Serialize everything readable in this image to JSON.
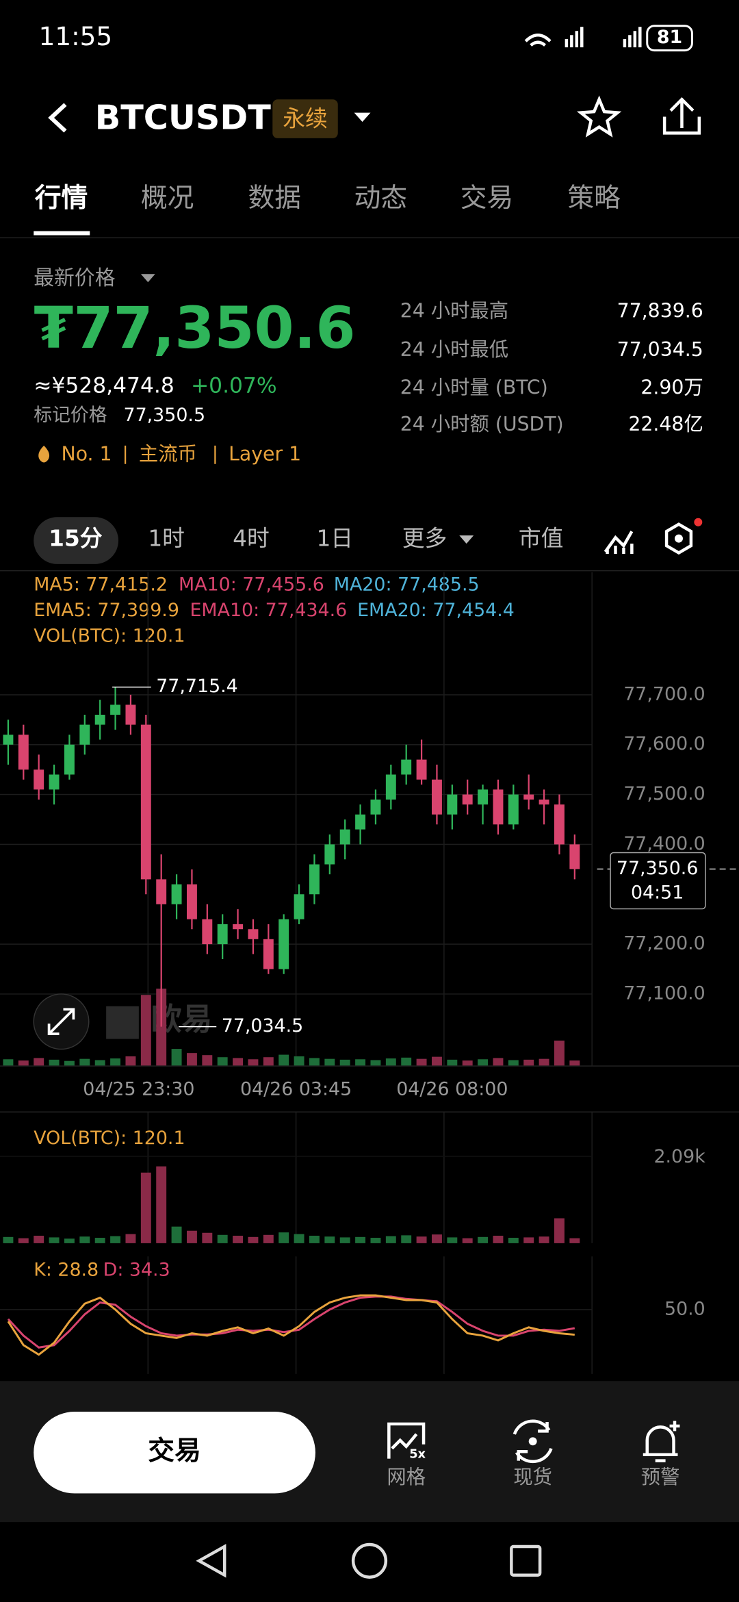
{
  "status": {
    "time": "11:55",
    "battery": "81"
  },
  "header": {
    "symbol": "BTCUSDT",
    "tag": "永续"
  },
  "tabs": [
    "行情",
    "概况",
    "数据",
    "动态",
    "交易",
    "策略"
  ],
  "price": {
    "label": "最新价格",
    "last": "₮77,350.6",
    "cny": "≈¥528,474.8",
    "change": "+0.07%",
    "mark_label": "标记价格",
    "mark": "77,350.5",
    "tags": [
      "No. 1",
      "主流币",
      "Layer 1"
    ]
  },
  "stats": [
    {
      "label": "24 小时最高",
      "value": "77,839.6"
    },
    {
      "label": "24 小时最低",
      "value": "77,034.5"
    },
    {
      "label": "24 小时量 (BTC)",
      "value": "2.90万"
    },
    {
      "label": "24 小时额 (USDT)",
      "value": "22.48亿"
    }
  ],
  "intervals": [
    "15分",
    "1时",
    "4时",
    "1日",
    "更多",
    "市值"
  ],
  "indicators": {
    "ma": [
      "MA5: 77,415.2",
      "MA10: 77,455.6",
      "MA20: 77,485.5"
    ],
    "ema": [
      "EMA5: 77,399.9",
      "EMA10: 77,434.6",
      "EMA20: 77,454.4"
    ],
    "vol": "VOL(BTC): 120.1"
  },
  "chart": {
    "yticks": [
      {
        "value": 77700,
        "label": "77,700.0"
      },
      {
        "value": 77600,
        "label": "77,600.0"
      },
      {
        "value": 77500,
        "label": "77,500.0"
      },
      {
        "value": 77400,
        "label": "77,400.0"
      },
      {
        "value": 77200,
        "label": "77,200.0"
      },
      {
        "value": 77100,
        "label": "77,100.0"
      }
    ],
    "candles": [
      [
        77600,
        77650,
        77560,
        77620
      ],
      [
        77620,
        77640,
        77530,
        77550
      ],
      [
        77550,
        77580,
        77490,
        77510
      ],
      [
        77510,
        77560,
        77480,
        77540
      ],
      [
        77540,
        77620,
        77530,
        77600
      ],
      [
        77600,
        77660,
        77580,
        77640
      ],
      [
        77640,
        77690,
        77610,
        77660
      ],
      [
        77660,
        77715.4,
        77630,
        77680
      ],
      [
        77680,
        77700,
        77620,
        77640
      ],
      [
        77640,
        77660,
        77300,
        77330
      ],
      [
        77330,
        77380,
        77034.5,
        77280
      ],
      [
        77280,
        77340,
        77250,
        77320
      ],
      [
        77320,
        77350,
        77230,
        77250
      ],
      [
        77250,
        77280,
        77180,
        77200
      ],
      [
        77200,
        77260,
        77170,
        77240
      ],
      [
        77240,
        77270,
        77210,
        77230
      ],
      [
        77230,
        77250,
        77180,
        77210
      ],
      [
        77210,
        77240,
        77140,
        77150
      ],
      [
        77150,
        77260,
        77140,
        77250
      ],
      [
        77250,
        77320,
        77240,
        77300
      ],
      [
        77300,
        77380,
        77280,
        77360
      ],
      [
        77360,
        77420,
        77340,
        77400
      ],
      [
        77400,
        77450,
        77370,
        77430
      ],
      [
        77430,
        77480,
        77400,
        77460
      ],
      [
        77460,
        77510,
        77440,
        77490
      ],
      [
        77490,
        77560,
        77470,
        77540
      ],
      [
        77540,
        77600,
        77520,
        77570
      ],
      [
        77570,
        77610,
        77520,
        77530
      ],
      [
        77530,
        77560,
        77440,
        77460
      ],
      [
        77460,
        77520,
        77430,
        77500
      ],
      [
        77500,
        77530,
        77460,
        77480
      ],
      [
        77480,
        77520,
        77440,
        77510
      ],
      [
        77510,
        77530,
        77420,
        77440
      ],
      [
        77440,
        77520,
        77430,
        77500
      ],
      [
        77500,
        77540,
        77470,
        77490
      ],
      [
        77490,
        77510,
        77440,
        77480
      ],
      [
        77480,
        77500,
        77380,
        77400
      ],
      [
        77400,
        77420,
        77330,
        77350.6
      ]
    ],
    "volumes": [
      150,
      120,
      180,
      140,
      110,
      160,
      130,
      170,
      220,
      1700,
      1850,
      400,
      300,
      250,
      200,
      180,
      150,
      200,
      260,
      220,
      180,
      160,
      140,
      150,
      130,
      170,
      190,
      160,
      210,
      140,
      120,
      150,
      180,
      130,
      140,
      160,
      600,
      120.1
    ],
    "high": {
      "value": 77715.4,
      "label": "77,715.4"
    },
    "low": {
      "value": 77034.5,
      "label": "77,034.5"
    },
    "last": {
      "value": 77350.6,
      "label": "77,350.6"
    },
    "countdown": "04:51",
    "xlabels": [
      "04/25 23:30",
      "04/26 03:45",
      "04/26 08:00"
    ],
    "watermark": "欧易"
  },
  "vol_panel": {
    "label": "VOL(BTC): 120.1",
    "ytick": {
      "value": 2090,
      "label": "2.09k"
    }
  },
  "kdj": {
    "k_label": "K: 28.8",
    "d_label": "D: 34.3",
    "ytick": {
      "value": 50,
      "label": "50.0"
    },
    "k": [
      40,
      20,
      12,
      22,
      40,
      55,
      60,
      50,
      38,
      30,
      28,
      26,
      30,
      28,
      32,
      35,
      30,
      34,
      28,
      36,
      48,
      56,
      60,
      62,
      62,
      60,
      58,
      58,
      56,
      42,
      30,
      28,
      24,
      30,
      35,
      32,
      30,
      28.8
    ],
    "d": [
      42,
      28,
      18,
      20,
      32,
      46,
      56,
      54,
      44,
      36,
      30,
      28,
      29,
      29,
      30,
      33,
      32,
      33,
      31,
      33,
      42,
      50,
      56,
      60,
      61,
      61,
      59,
      58,
      57,
      48,
      38,
      32,
      28,
      28,
      32,
      33,
      32,
      34.3
    ]
  },
  "bottom": {
    "button": "交易",
    "grid_badge": "5x",
    "nav": [
      "网格",
      "现货",
      "预警"
    ]
  }
}
